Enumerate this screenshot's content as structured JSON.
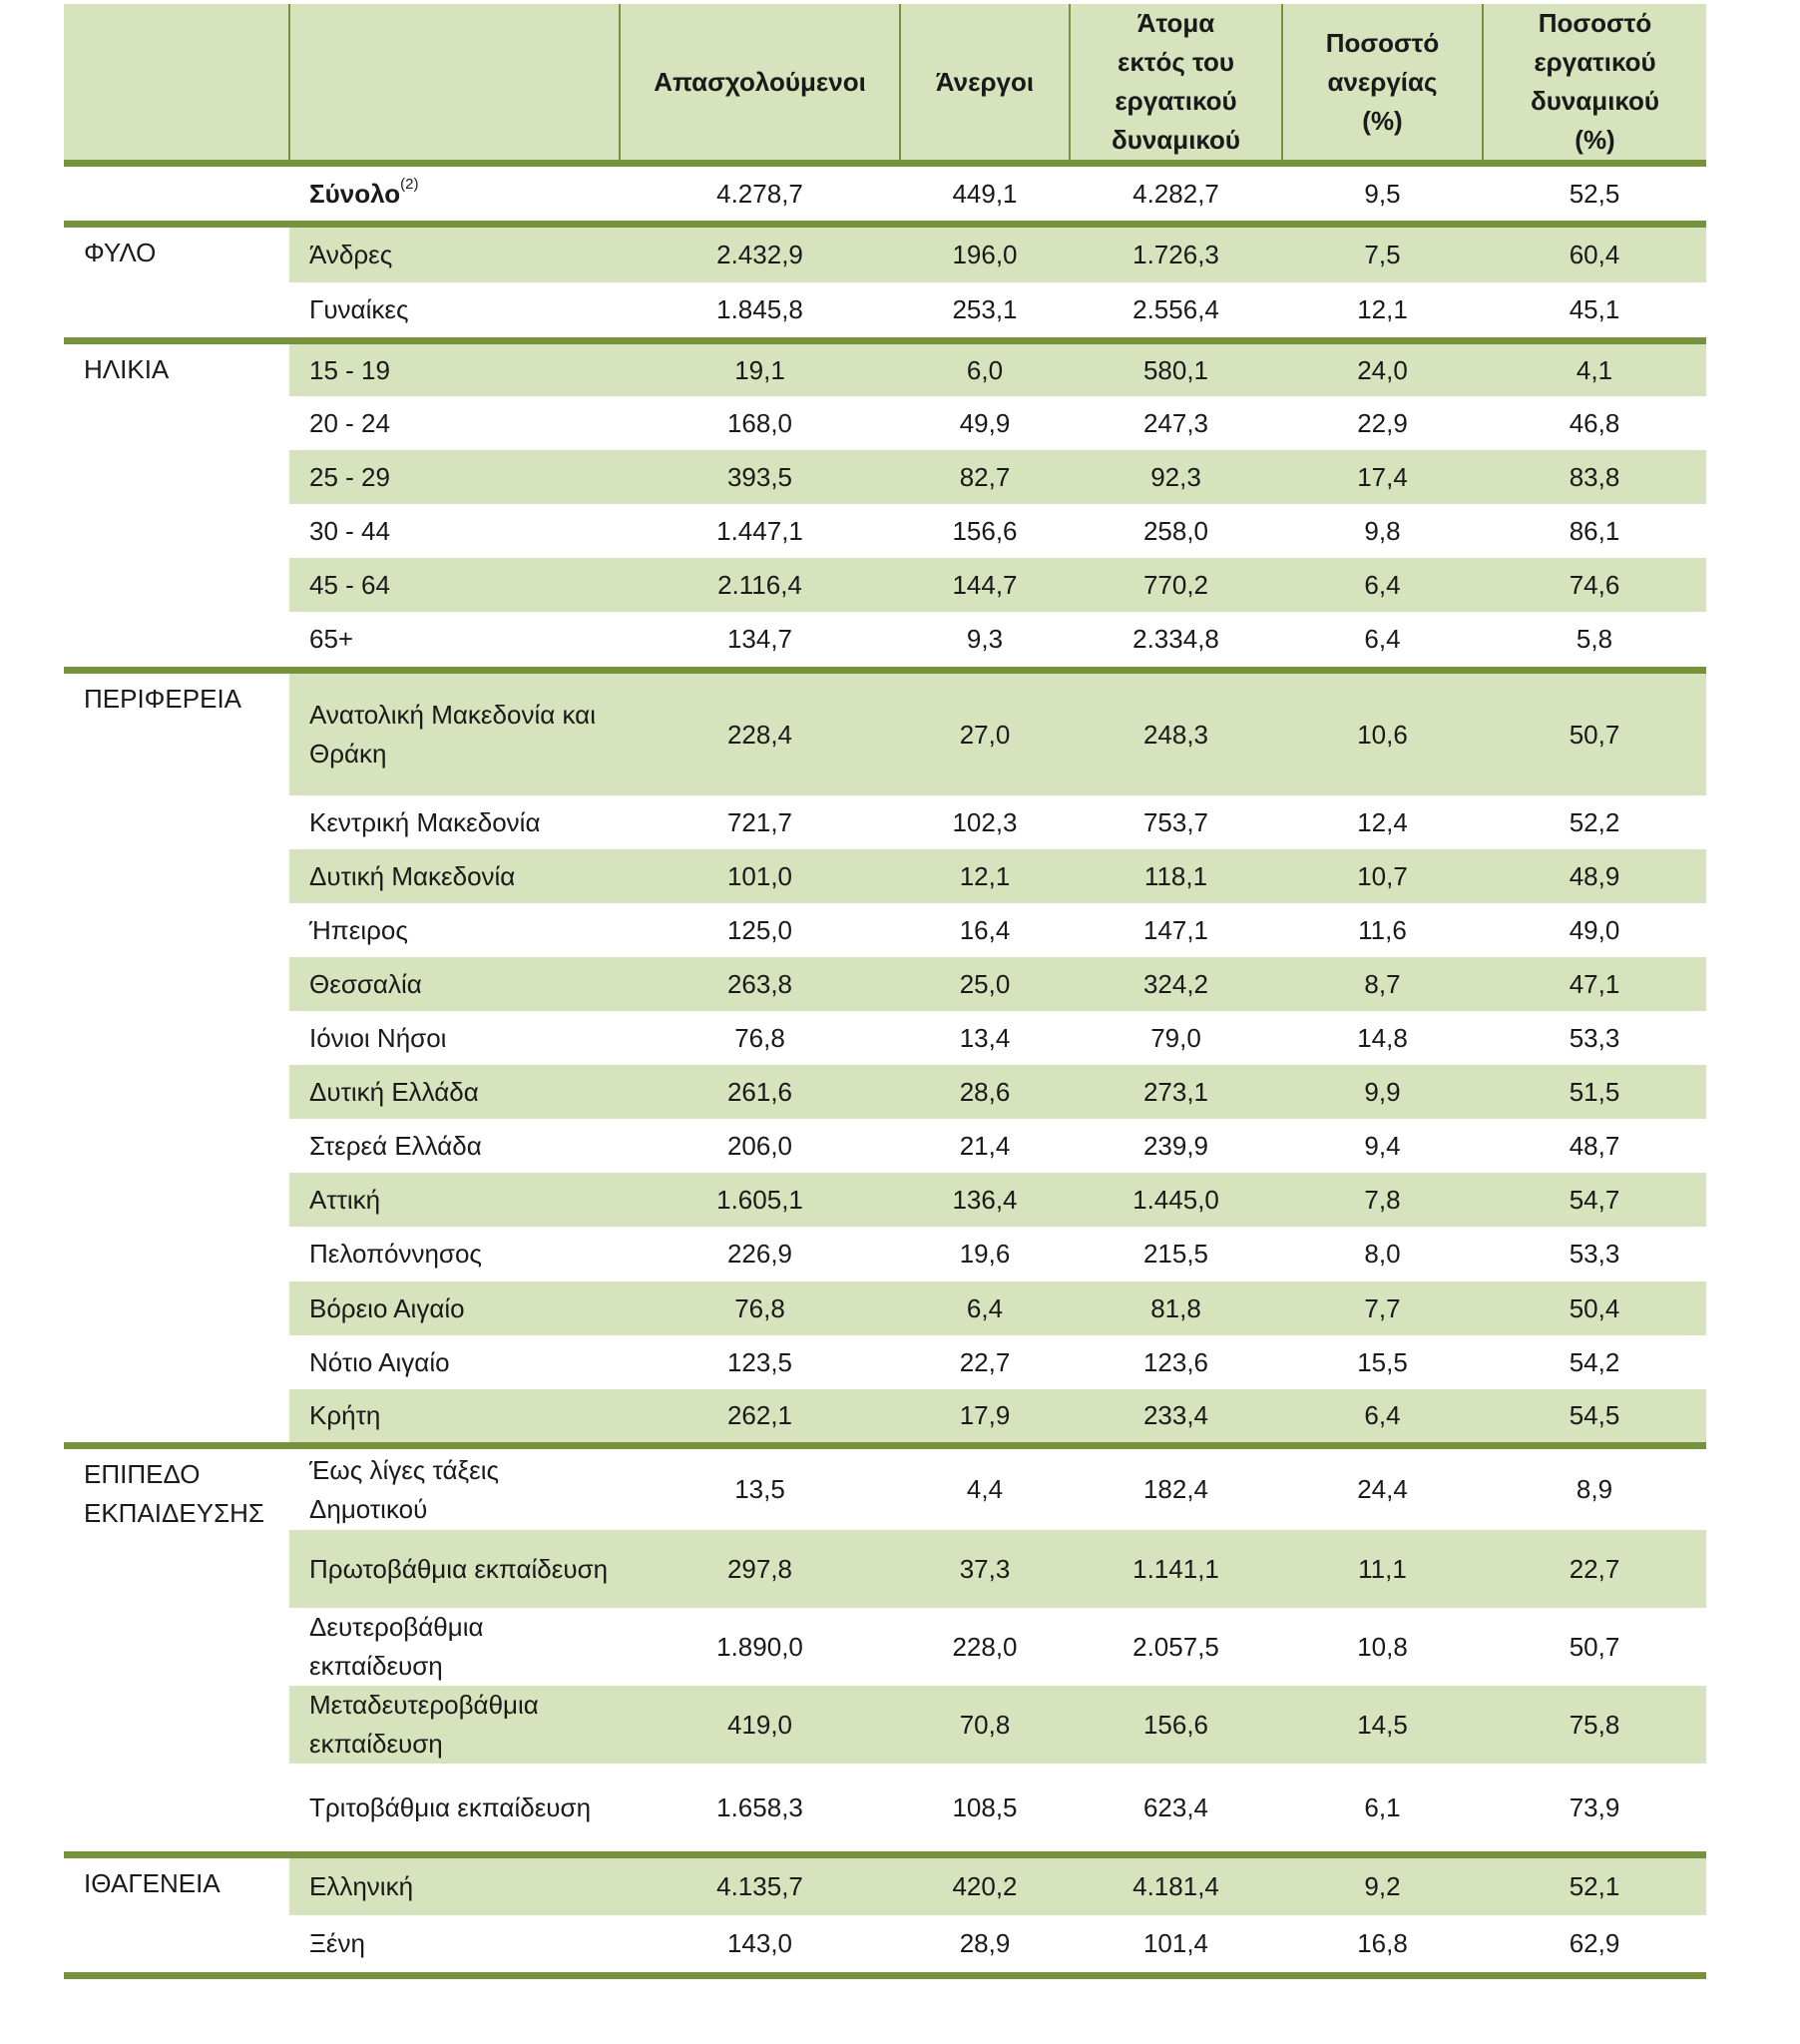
{
  "header": {
    "category": "",
    "label": "",
    "columns": [
      "Απασχολούμενοι",
      "Άνεργοι",
      "Άτομα εκτός του εργατικού δυναμικού",
      "Ποσοστό ανεργίας (%)",
      "Ποσοστό εργατικού δυναμικού (%)"
    ]
  },
  "colors": {
    "header_bg": "#d6e3bc",
    "rule": "#76923c"
  },
  "groups": [
    {
      "category": "",
      "rows": [
        {
          "label": "Σύνολο",
          "note": "(2)",
          "values": [
            "4.278,7",
            "449,1",
            "4.282,7",
            "9,5",
            "52,5"
          ]
        }
      ]
    },
    {
      "category": "ΦΥΛΟ",
      "rows": [
        {
          "label": "Άνδρες",
          "values": [
            "2.432,9",
            "196,0",
            "1.726,3",
            "7,5",
            "60,4"
          ]
        },
        {
          "label": "Γυναίκες",
          "values": [
            "1.845,8",
            "253,1",
            "2.556,4",
            "12,1",
            "45,1"
          ]
        }
      ]
    },
    {
      "category": "ΗΛΙΚΙΑ",
      "rows": [
        {
          "label": "15 - 19",
          "values": [
            "19,1",
            "6,0",
            "580,1",
            "24,0",
            "4,1"
          ]
        },
        {
          "label": "20 - 24",
          "values": [
            "168,0",
            "49,9",
            "247,3",
            "22,9",
            "46,8"
          ]
        },
        {
          "label": "25 - 29",
          "values": [
            "393,5",
            "82,7",
            "92,3",
            "17,4",
            "83,8"
          ]
        },
        {
          "label": "30 - 44",
          "values": [
            "1.447,1",
            "156,6",
            "258,0",
            "9,8",
            "86,1"
          ]
        },
        {
          "label": "45 - 64",
          "values": [
            "2.116,4",
            "144,7",
            "770,2",
            "6,4",
            "74,6"
          ]
        },
        {
          "label": "65+",
          "values": [
            "134,7",
            "9,3",
            "2.334,8",
            "6,4",
            "5,8"
          ]
        }
      ]
    },
    {
      "category": "ΠΕΡΙΦΕΡΕΙΑ",
      "rows": [
        {
          "label": "Ανατολική Μακεδονία και Θράκη",
          "values": [
            "228,4",
            "27,0",
            "248,3",
            "10,6",
            "50,7"
          ]
        },
        {
          "label": "Κεντρική Μακεδονία",
          "values": [
            "721,7",
            "102,3",
            "753,7",
            "12,4",
            "52,2"
          ]
        },
        {
          "label": "Δυτική Μακεδονία",
          "values": [
            "101,0",
            "12,1",
            "118,1",
            "10,7",
            "48,9"
          ]
        },
        {
          "label": "Ήπειρος",
          "values": [
            "125,0",
            "16,4",
            "147,1",
            "11,6",
            "49,0"
          ]
        },
        {
          "label": "Θεσσαλία",
          "values": [
            "263,8",
            "25,0",
            "324,2",
            "8,7",
            "47,1"
          ]
        },
        {
          "label": "Ιόνιοι Νήσοι",
          "values": [
            "76,8",
            "13,4",
            "79,0",
            "14,8",
            "53,3"
          ]
        },
        {
          "label": "Δυτική Ελλάδα",
          "values": [
            "261,6",
            "28,6",
            "273,1",
            "9,9",
            "51,5"
          ]
        },
        {
          "label": "Στερεά Ελλάδα",
          "values": [
            "206,0",
            "21,4",
            "239,9",
            "9,4",
            "48,7"
          ]
        },
        {
          "label": "Αττική",
          "values": [
            "1.605,1",
            "136,4",
            "1.445,0",
            "7,8",
            "54,7"
          ]
        },
        {
          "label": "Πελοπόννησος",
          "values": [
            "226,9",
            "19,6",
            "215,5",
            "8,0",
            "53,3"
          ]
        },
        {
          "label": "Βόρειο Αιγαίο",
          "values": [
            "76,8",
            "6,4",
            "81,8",
            "7,7",
            "50,4"
          ]
        },
        {
          "label": "Νότιο Αιγαίο",
          "values": [
            "123,5",
            "22,7",
            "123,6",
            "15,5",
            "54,2"
          ]
        },
        {
          "label": "Κρήτη",
          "values": [
            "262,1",
            "17,9",
            "233,4",
            "6,4",
            "54,5"
          ]
        }
      ]
    },
    {
      "category": "ΕΠΙΠΕΔΟ ΕΚΠΑΙΔΕΥΣΗΣ",
      "rows": [
        {
          "label": "Έως λίγες τάξεις Δημοτικού",
          "values": [
            "13,5",
            "4,4",
            "182,4",
            "24,4",
            "8,9"
          ]
        },
        {
          "label": "Πρωτοβάθμια εκπαίδευση",
          "values": [
            "297,8",
            "37,3",
            "1.141,1",
            "11,1",
            "22,7"
          ]
        },
        {
          "label": "Δευτεροβάθμια εκπαίδευση",
          "values": [
            "1.890,0",
            "228,0",
            "2.057,5",
            "10,8",
            "50,7"
          ]
        },
        {
          "label": "Μεταδευτεροβάθμια εκπαίδευση",
          "values": [
            "419,0",
            "70,8",
            "156,6",
            "14,5",
            "75,8"
          ]
        },
        {
          "label": "Τριτοβάθμια εκπαίδευση",
          "values": [
            "1.658,3",
            "108,5",
            "623,4",
            "6,1",
            "73,9"
          ]
        }
      ]
    },
    {
      "category": "ΙΘΑΓΕΝΕΙΑ",
      "rows": [
        {
          "label": "Ελληνική",
          "values": [
            "4.135,7",
            "420,2",
            "4.181,4",
            "9,2",
            "52,1"
          ]
        },
        {
          "label": "Ξένη",
          "values": [
            "143,0",
            "28,9",
            "101,4",
            "16,8",
            "62,9"
          ]
        }
      ]
    }
  ]
}
